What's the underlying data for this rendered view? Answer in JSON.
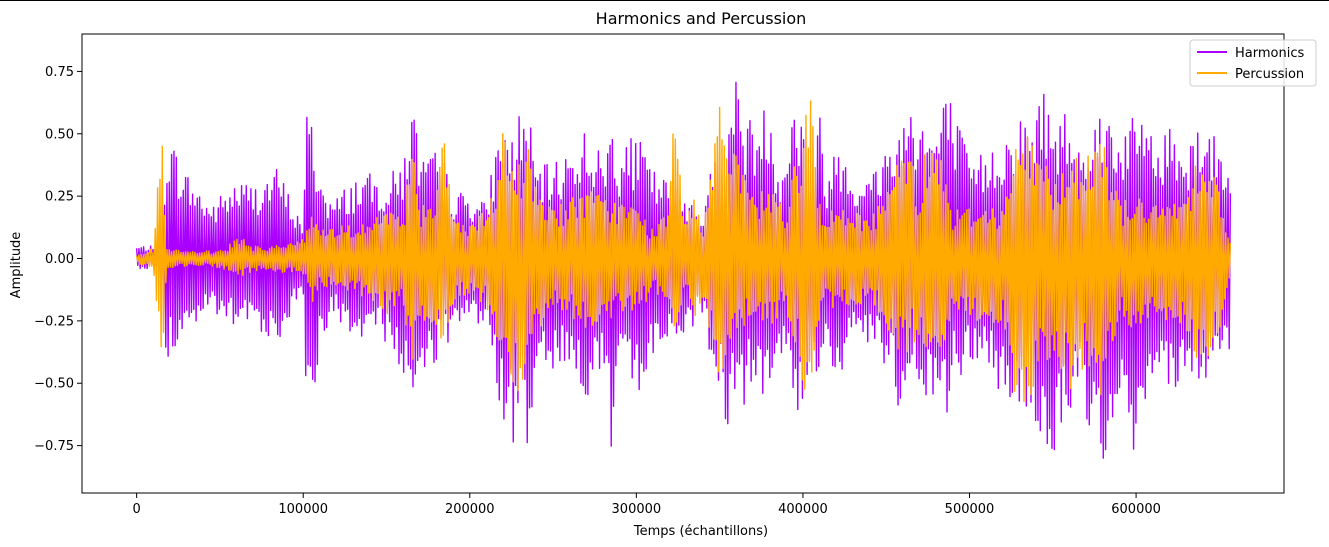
{
  "chart_data": {
    "type": "line",
    "title": "Harmonics and Percussion",
    "xlabel": "Temps (échantillons)",
    "ylabel": "Amplitude",
    "xlim": [
      -32800,
      688800
    ],
    "ylim": [
      -0.94,
      0.9
    ],
    "x_ticks": [
      0,
      100000,
      200000,
      300000,
      400000,
      500000,
      600000
    ],
    "x_tick_labels": [
      "0",
      "100000",
      "200000",
      "300000",
      "400000",
      "500000",
      "600000"
    ],
    "y_ticks": [
      -0.75,
      -0.5,
      -0.25,
      0.0,
      0.25,
      0.5,
      0.75
    ],
    "y_tick_labels": [
      "−0.75",
      "−0.50",
      "−0.25",
      "0.00",
      "0.25",
      "0.50",
      "0.75"
    ],
    "grid": false,
    "legend_position": "top-right",
    "series": [
      {
        "name": "Harmonics",
        "color": "#aa00ff",
        "x": [
          0,
          15000,
          18000,
          30000,
          45000,
          60000,
          70000,
          85000,
          95000,
          100000,
          102000,
          105000,
          110000,
          118000,
          125000,
          135000,
          150000,
          160000,
          165000,
          170000,
          175000,
          180000,
          185000,
          190000,
          200000,
          210000,
          215000,
          220000,
          225000,
          230000,
          235000,
          240000,
          250000,
          260000,
          270000,
          280000,
          285000,
          290000,
          300000,
          305000,
          310000,
          320000,
          330000,
          340000,
          350000,
          355000,
          360000,
          365000,
          370000,
          375000,
          380000,
          385000,
          390000,
          395000,
          400000,
          405000,
          410000,
          415000,
          420000,
          425000,
          430000,
          440000,
          450000,
          455000,
          460000,
          465000,
          470000,
          475000,
          480000,
          485000,
          490000,
          500000,
          510000,
          520000,
          530000,
          540000,
          545000,
          550000,
          555000,
          560000,
          565000,
          570000,
          575000,
          580000,
          590000,
          595000,
          600000,
          605000,
          610000,
          615000,
          620000,
          630000,
          640000,
          650000,
          657000
        ],
        "upper": [
          0.05,
          0.05,
          0.52,
          0.35,
          0.22,
          0.32,
          0.3,
          0.37,
          0.2,
          0.15,
          0.59,
          0.57,
          0.34,
          0.23,
          0.29,
          0.35,
          0.32,
          0.4,
          0.66,
          0.45,
          0.4,
          0.44,
          0.39,
          0.27,
          0.27,
          0.22,
          0.44,
          0.57,
          0.48,
          0.61,
          0.6,
          0.37,
          0.38,
          0.45,
          0.54,
          0.4,
          0.58,
          0.44,
          0.5,
          0.44,
          0.36,
          0.31,
          0.27,
          0.2,
          0.54,
          0.48,
          0.82,
          0.59,
          0.56,
          0.59,
          0.66,
          0.38,
          0.46,
          0.66,
          0.57,
          0.37,
          0.59,
          0.32,
          0.5,
          0.47,
          0.35,
          0.33,
          0.46,
          0.53,
          0.57,
          0.67,
          0.61,
          0.54,
          0.53,
          0.66,
          0.64,
          0.39,
          0.44,
          0.5,
          0.57,
          0.59,
          0.76,
          0.5,
          0.62,
          0.59,
          0.48,
          0.56,
          0.55,
          0.66,
          0.51,
          0.59,
          0.54,
          0.63,
          0.54,
          0.42,
          0.59,
          0.46,
          0.6,
          0.45,
          0.45
        ],
        "lower": [
          -0.04,
          -0.04,
          -0.44,
          -0.3,
          -0.22,
          -0.3,
          -0.27,
          -0.34,
          -0.2,
          -0.15,
          -0.6,
          -0.75,
          -0.33,
          -0.23,
          -0.3,
          -0.38,
          -0.33,
          -0.51,
          -0.68,
          -0.47,
          -0.41,
          -0.43,
          -0.41,
          -0.28,
          -0.27,
          -0.25,
          -0.48,
          -0.75,
          -0.8,
          -0.6,
          -0.76,
          -0.42,
          -0.44,
          -0.49,
          -0.56,
          -0.51,
          -0.81,
          -0.53,
          -0.54,
          -0.55,
          -0.38,
          -0.36,
          -0.3,
          -0.24,
          -0.58,
          -0.69,
          -0.51,
          -0.59,
          -0.55,
          -0.59,
          -0.55,
          -0.42,
          -0.44,
          -0.57,
          -0.71,
          -0.38,
          -0.52,
          -0.38,
          -0.49,
          -0.5,
          -0.34,
          -0.34,
          -0.48,
          -0.54,
          -0.79,
          -0.53,
          -0.61,
          -0.59,
          -0.55,
          -0.71,
          -0.53,
          -0.43,
          -0.43,
          -0.59,
          -0.59,
          -0.67,
          -0.77,
          -0.86,
          -0.68,
          -0.72,
          -0.52,
          -0.72,
          -0.63,
          -0.82,
          -0.59,
          -0.65,
          -0.86,
          -0.6,
          -0.45,
          -0.44,
          -0.55,
          -0.45,
          -0.52,
          -0.43,
          -0.45
        ]
      },
      {
        "name": "Percussion",
        "color": "#ffaa00",
        "x": [
          0,
          10000,
          15000,
          16000,
          18000,
          30000,
          45000,
          55000,
          60000,
          70000,
          80000,
          95000,
          100000,
          105000,
          110000,
          120000,
          130000,
          140000,
          150000,
          160000,
          165000,
          170000,
          180000,
          185000,
          190000,
          200000,
          210000,
          215000,
          220000,
          225000,
          230000,
          235000,
          240000,
          250000,
          260000,
          270000,
          280000,
          290000,
          300000,
          310000,
          320000,
          322000,
          330000,
          335000,
          340000,
          350000,
          355000,
          360000,
          370000,
          380000,
          390000,
          400000,
          404000,
          410000,
          420000,
          430000,
          440000,
          450000,
          460000,
          470000,
          475000,
          480000,
          490000,
          500000,
          510000,
          520000,
          530000,
          535000,
          540000,
          550000,
          560000,
          570000,
          575000,
          580000,
          590000,
          600000,
          610000,
          620000,
          630000,
          640000,
          650000,
          657000
        ],
        "upper": [
          0.02,
          0.04,
          0.51,
          0.44,
          0.04,
          0.03,
          0.03,
          0.05,
          0.1,
          0.05,
          0.05,
          0.08,
          0.08,
          0.18,
          0.14,
          0.13,
          0.14,
          0.16,
          0.2,
          0.15,
          0.51,
          0.22,
          0.3,
          0.51,
          0.18,
          0.13,
          0.2,
          0.28,
          0.57,
          0.35,
          0.42,
          0.45,
          0.3,
          0.22,
          0.24,
          0.29,
          0.25,
          0.24,
          0.21,
          0.12,
          0.2,
          0.67,
          0.12,
          0.32,
          0.12,
          0.71,
          0.46,
          0.41,
          0.25,
          0.3,
          0.2,
          0.55,
          0.79,
          0.22,
          0.19,
          0.2,
          0.17,
          0.26,
          0.55,
          0.28,
          0.52,
          0.55,
          0.2,
          0.21,
          0.23,
          0.2,
          0.53,
          0.51,
          0.46,
          0.35,
          0.37,
          0.45,
          0.53,
          0.54,
          0.22,
          0.27,
          0.21,
          0.23,
          0.28,
          0.5,
          0.3,
          0.05
        ],
        "lower": [
          -0.02,
          -0.04,
          -0.43,
          -0.34,
          -0.04,
          -0.03,
          -0.03,
          -0.05,
          -0.08,
          -0.05,
          -0.05,
          -0.06,
          -0.08,
          -0.18,
          -0.12,
          -0.13,
          -0.15,
          -0.18,
          -0.24,
          -0.18,
          -0.51,
          -0.23,
          -0.3,
          -0.34,
          -0.2,
          -0.14,
          -0.2,
          -0.29,
          -0.56,
          -0.55,
          -0.56,
          -0.38,
          -0.3,
          -0.22,
          -0.24,
          -0.28,
          -0.26,
          -0.23,
          -0.22,
          -0.14,
          -0.2,
          -0.43,
          -0.12,
          -0.31,
          -0.14,
          -0.56,
          -0.44,
          -0.33,
          -0.25,
          -0.28,
          -0.2,
          -0.54,
          -0.6,
          -0.22,
          -0.19,
          -0.2,
          -0.18,
          -0.28,
          -0.43,
          -0.3,
          -0.51,
          -0.52,
          -0.22,
          -0.24,
          -0.3,
          -0.24,
          -0.67,
          -0.67,
          -0.47,
          -0.38,
          -0.56,
          -0.45,
          -0.57,
          -0.58,
          -0.24,
          -0.32,
          -0.21,
          -0.26,
          -0.3,
          -0.5,
          -0.31,
          -0.05
        ]
      }
    ]
  }
}
